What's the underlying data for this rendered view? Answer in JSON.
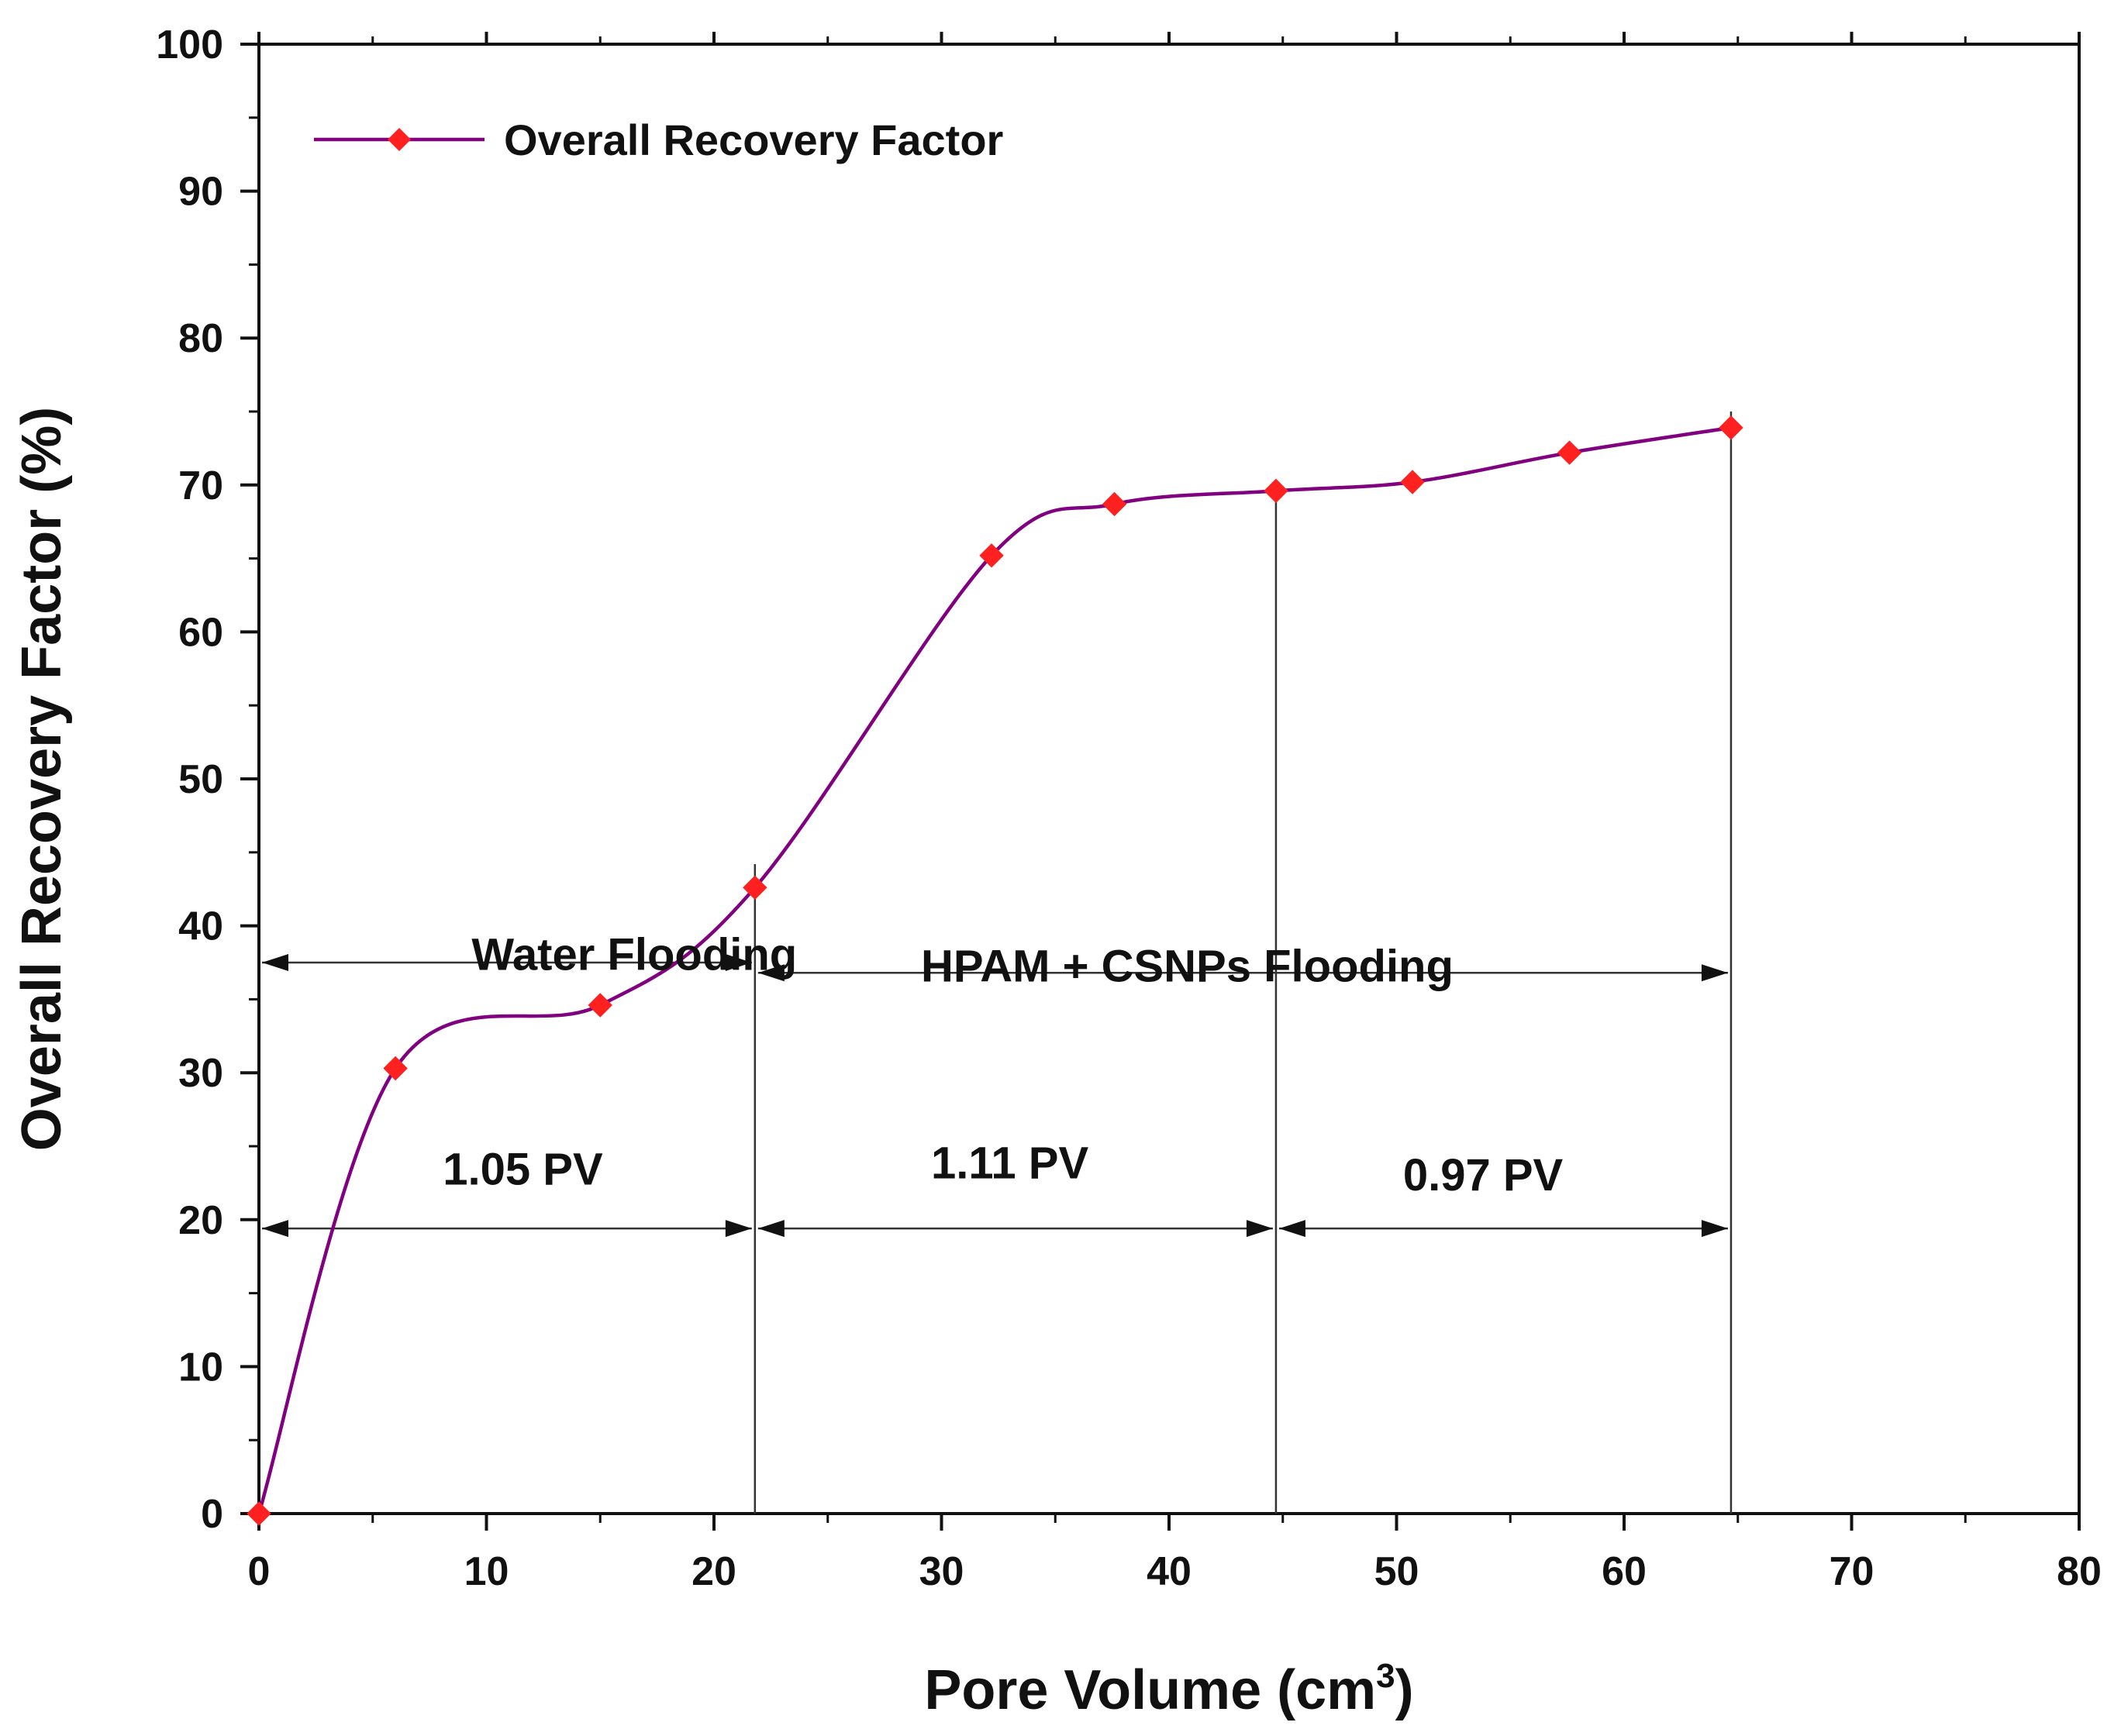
{
  "chart_data": {
    "type": "line",
    "title": "",
    "xlabel": "Pore Volume (cm",
    "xlabel_sup": "3",
    "xlabel_close": ")",
    "ylabel": "Overall Recovery Factor (%)",
    "xlim": [
      0,
      80
    ],
    "ylim": [
      0,
      100
    ],
    "xticks": [
      "0",
      "10",
      "20",
      "30",
      "40",
      "50",
      "60",
      "70",
      "80"
    ],
    "yticks": [
      "0",
      "10",
      "20",
      "30",
      "40",
      "50",
      "60",
      "70",
      "80",
      "90",
      "100"
    ],
    "grid": false,
    "legend_position": "top-left",
    "series": [
      {
        "name": "Overall Recovery Factor",
        "line_color": "#800080",
        "marker_color": "#ff2020",
        "marker": "diamond",
        "x": [
          0,
          6,
          15,
          21.8,
          32.2,
          37.6,
          44.7,
          50.7,
          57.6,
          64.7
        ],
        "y": [
          0,
          30.3,
          34.6,
          42.6,
          65.2,
          68.7,
          69.6,
          70.2,
          72.2,
          73.9
        ]
      }
    ],
    "vertical_lines": [
      {
        "x": 21.8,
        "y_top": 44.2
      },
      {
        "x": 44.7,
        "y_top": 69.6
      },
      {
        "x": 64.7,
        "y_top": 75.0
      }
    ],
    "annotations": [
      {
        "text": "Water Flooding",
        "x": 16.5,
        "y": 37.0
      },
      {
        "text": "HPAM + CSNPs Flooding",
        "x": 40.8,
        "y": 36.2
      },
      {
        "text": "1.05 PV",
        "x": 11.6,
        "y": 22.4
      },
      {
        "text": "1.11 PV",
        "x": 33.0,
        "y": 22.8
      },
      {
        "text": "0.97 PV",
        "x": 53.8,
        "y": 22.0
      }
    ],
    "arrows": [
      {
        "x1": 0,
        "x2": 21.8,
        "y": 37.5,
        "from": 0,
        "to": 21.8
      },
      {
        "x1": 21.8,
        "x2": 64.7,
        "y": 36.8
      },
      {
        "x1": 0,
        "x2": 21.8,
        "y": 19.4
      },
      {
        "x1": 21.8,
        "x2": 44.7,
        "y": 19.4
      },
      {
        "x1": 44.7,
        "x2": 64.7,
        "y": 19.4
      }
    ]
  }
}
